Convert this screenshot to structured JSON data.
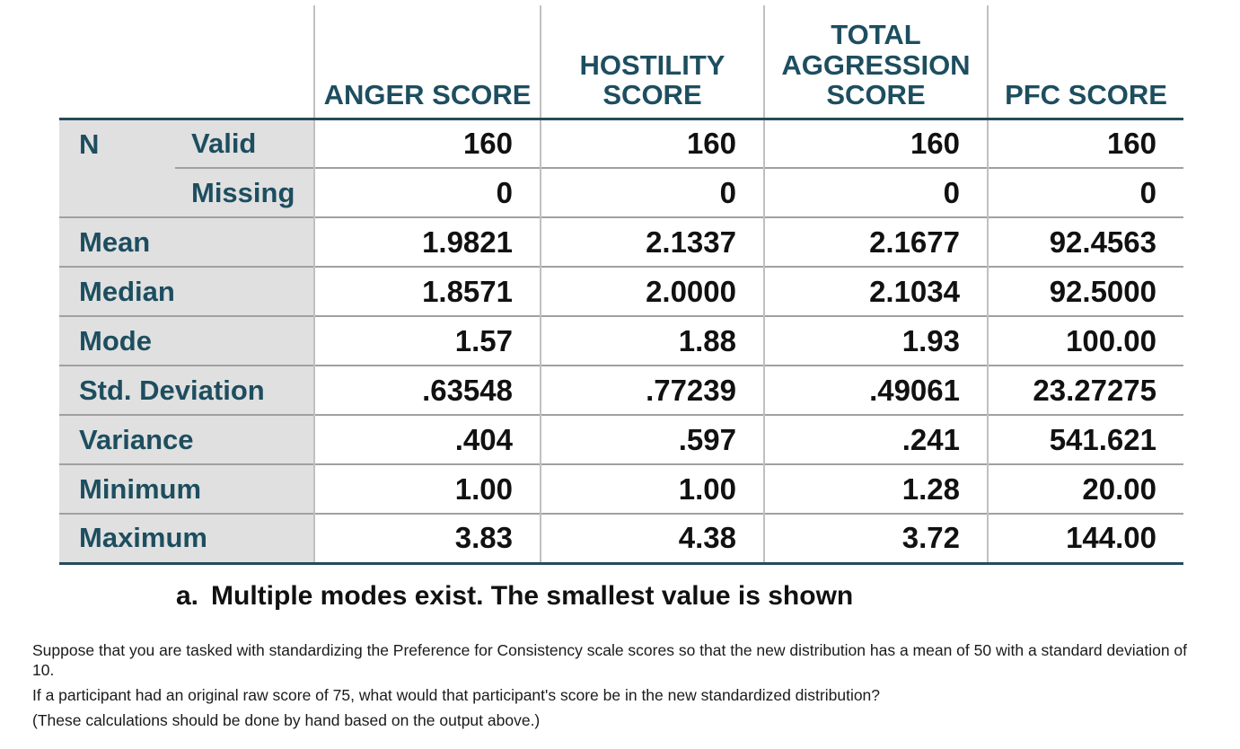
{
  "table": {
    "columns": [
      "ANGER SCORE",
      "HOSTILITY\nSCORE",
      "TOTAL\nAGGRESSION\nSCORE",
      "PFC SCORE"
    ],
    "n_group": {
      "label": "N",
      "subrows": [
        {
          "label": "Valid",
          "values": [
            "160",
            "160",
            "160",
            "160"
          ]
        },
        {
          "label": "Missing",
          "values": [
            "0",
            "0",
            "0",
            "0"
          ]
        }
      ]
    },
    "rows": [
      {
        "label": "Mean",
        "values": [
          "1.9821",
          "2.1337",
          "2.1677",
          "92.4563"
        ]
      },
      {
        "label": "Median",
        "values": [
          "1.8571",
          "2.0000",
          "2.1034",
          "92.5000"
        ]
      },
      {
        "label": "Mode",
        "values": [
          "1.57",
          "1.88",
          "1.93",
          "100.00"
        ]
      },
      {
        "label": "Std. Deviation",
        "values": [
          ".63548",
          ".77239",
          ".49061",
          "23.27275"
        ]
      },
      {
        "label": "Variance",
        "values": [
          ".404",
          ".597",
          ".241",
          "541.621"
        ]
      },
      {
        "label": "Minimum",
        "values": [
          "1.00",
          "1.00",
          "1.28",
          "20.00"
        ]
      },
      {
        "label": "Maximum",
        "values": [
          "3.83",
          "4.38",
          "3.72",
          "144.00"
        ]
      }
    ],
    "footnote": {
      "marker": "a.",
      "text": "Multiple modes exist. The smallest value is shown"
    }
  },
  "question": {
    "line1": "Suppose that you are tasked with standardizing the Preference for Consistency scale scores so that the new distribution has a mean of 50 with a standard deviation of 10.",
    "line2": "If a participant had an original raw score of 75, what would that participant's score be in the new standardized distribution?",
    "line3": "(These calculations should be done by hand based on the output above.)"
  },
  "colors": {
    "header_text": "#1d4e5f",
    "value_text": "#111111",
    "label_bg": "#e0e0e0",
    "thick_rule": "#254b5a",
    "thin_rule": "#a0a0a0",
    "vertical_rule": "#c0c0c0"
  }
}
